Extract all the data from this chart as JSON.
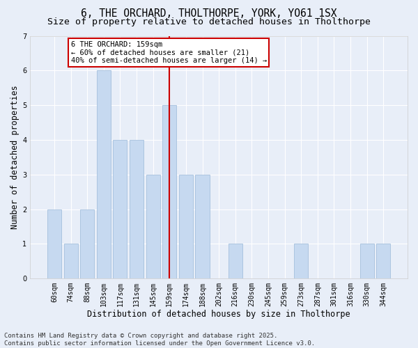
{
  "title_line1": "6, THE ORCHARD, THOLTHORPE, YORK, YO61 1SX",
  "title_line2": "Size of property relative to detached houses in Tholthorpe",
  "xlabel": "Distribution of detached houses by size in Tholthorpe",
  "ylabel": "Number of detached properties",
  "categories": [
    "60sqm",
    "74sqm",
    "88sqm",
    "103sqm",
    "117sqm",
    "131sqm",
    "145sqm",
    "159sqm",
    "174sqm",
    "188sqm",
    "202sqm",
    "216sqm",
    "230sqm",
    "245sqm",
    "259sqm",
    "273sqm",
    "287sqm",
    "301sqm",
    "316sqm",
    "330sqm",
    "344sqm"
  ],
  "values": [
    2,
    1,
    2,
    6,
    4,
    4,
    3,
    5,
    3,
    3,
    0,
    1,
    0,
    0,
    0,
    1,
    0,
    0,
    0,
    1,
    1
  ],
  "bar_color": "#c6d9f0",
  "bar_edge_color": "#9ab8d8",
  "highlight_index": 7,
  "highlight_line_color": "#cc0000",
  "annotation_line1": "6 THE ORCHARD: 159sqm",
  "annotation_line2": "← 60% of detached houses are smaller (21)",
  "annotation_line3": "40% of semi-detached houses are larger (14) →",
  "annotation_box_color": "#ffffff",
  "annotation_box_edge": "#cc0000",
  "ylim": [
    0,
    7
  ],
  "yticks": [
    0,
    1,
    2,
    3,
    4,
    5,
    6,
    7
  ],
  "background_color": "#e8eef8",
  "grid_color": "#ffffff",
  "footer": "Contains HM Land Registry data © Crown copyright and database right 2025.\nContains public sector information licensed under the Open Government Licence v3.0.",
  "title_fontsize": 10.5,
  "subtitle_fontsize": 9.5,
  "axis_label_fontsize": 8.5,
  "tick_fontsize": 7,
  "annotation_fontsize": 7.5,
  "footer_fontsize": 6.5
}
